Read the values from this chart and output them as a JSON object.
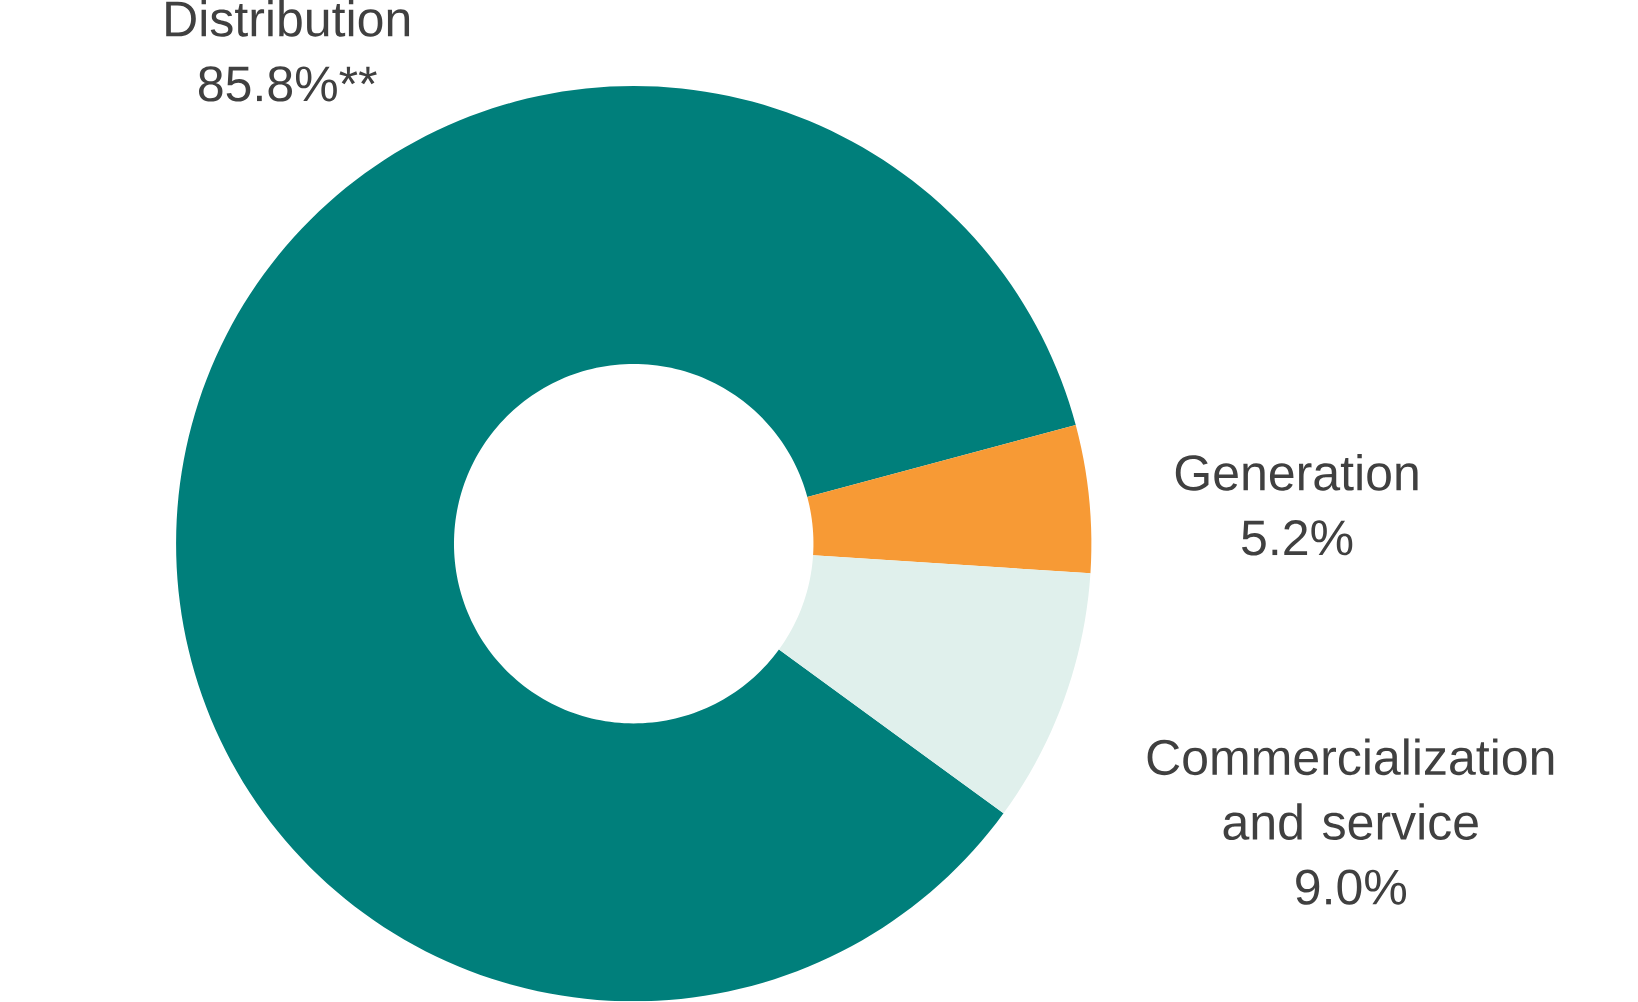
{
  "chart_data": {
    "type": "donut",
    "categories": [
      "Distribution",
      "Generation",
      "Commercialization and service"
    ],
    "values": [
      85.8,
      5.2,
      9.0
    ],
    "colors": [
      "#007f7b",
      "#f79a35",
      "#e0f0ec"
    ],
    "value_labels": [
      "85.8%**",
      "5.2%",
      "9.0%"
    ]
  }
}
